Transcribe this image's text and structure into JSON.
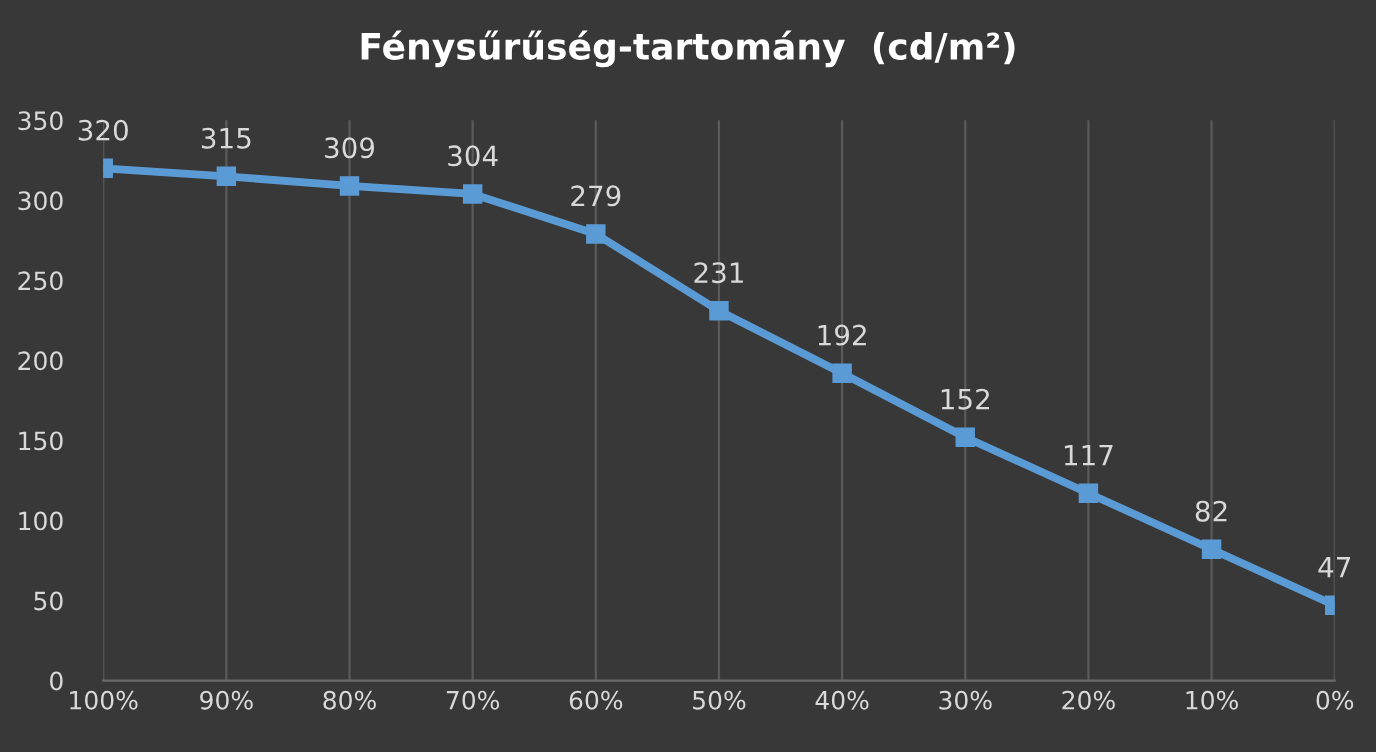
{
  "chart_data": {
    "type": "line",
    "title": "Fénysűrűség-tartomány  (cd/m²)",
    "categories": [
      "100%",
      "90%",
      "80%",
      "70%",
      "60%",
      "50%",
      "40%",
      "30%",
      "20%",
      "10%",
      "0%"
    ],
    "series": [
      {
        "color": "#5b9bd5",
        "values": [
          320,
          315,
          309,
          304,
          279,
          231,
          192,
          152,
          117,
          82,
          47
        ]
      }
    ],
    "ylim": [
      0,
      350
    ],
    "yticks": [
      0,
      50,
      100,
      150,
      200,
      250,
      300,
      350
    ],
    "grid": "x",
    "marker": "square",
    "line_style": "solid",
    "data_labels": true,
    "legend": false
  }
}
